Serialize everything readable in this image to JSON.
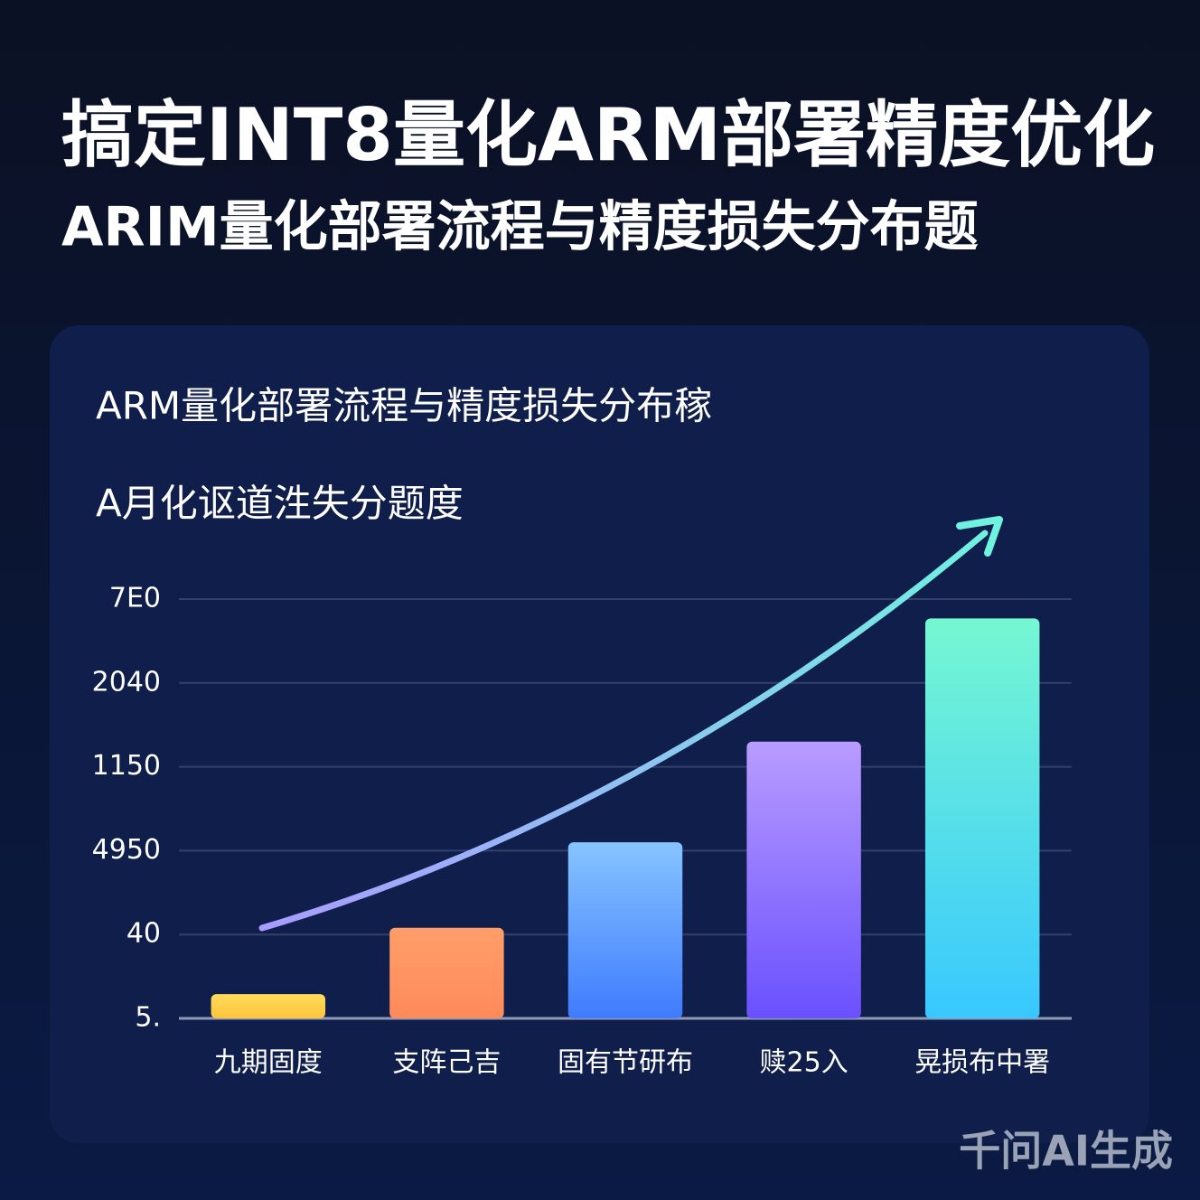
{
  "chart_data": {
    "type": "bar",
    "title": "搞定INT8量化ARM部署精度优化",
    "subtitle": "ARIM量化部署流程与精度损失分布题",
    "chart_title": "ARM量化部署流程与精度损失分布稼",
    "chart_subtitle": "A月化讴道泩失分题度",
    "watermark": "千问AI生成",
    "categories": [
      "九期固度",
      "支阵己吉",
      "固有节研布",
      "赎25入",
      "晃损布中署"
    ],
    "values": [
      0.29,
      1.08,
      2.1,
      3.3,
      4.77
    ],
    "colors": [
      [
        "#ffdc5e",
        "#ffc43a"
      ],
      [
        "#ff9e6a",
        "#ff8a5a"
      ],
      [
        "#86c4ff",
        "#3f7bff"
      ],
      [
        "#b89cff",
        "#6a50ff"
      ],
      [
        "#76f7d2",
        "#38c8ff"
      ]
    ],
    "ylim": [
      0,
      5
    ],
    "yticks": [
      {
        "value": 0,
        "label": "5."
      },
      {
        "value": 1,
        "label": "40"
      },
      {
        "value": 2,
        "label": "4950"
      },
      {
        "value": 3,
        "label": "1150"
      },
      {
        "value": 4,
        "label": "2040"
      },
      {
        "value": 5,
        "label": "7E0"
      }
    ],
    "grid": true
  }
}
